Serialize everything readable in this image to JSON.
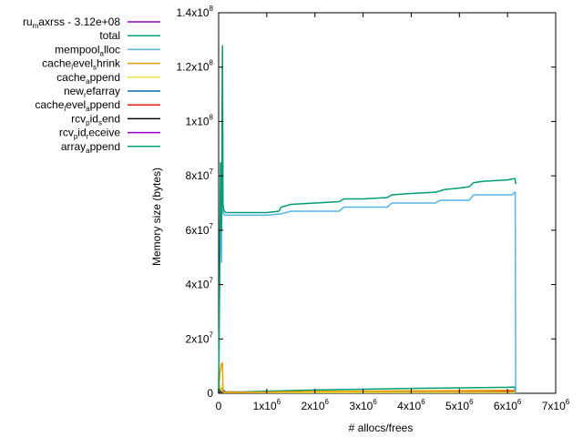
{
  "chart_data": {
    "type": "line",
    "title": "",
    "xlabel": "# allocs/frees",
    "ylabel": "Memory size (bytes)",
    "xlim": [
      0,
      7000000
    ],
    "ylim": [
      0,
      140000000
    ],
    "x_ticks": [
      {
        "value": 0,
        "mant": "0",
        "exp": ""
      },
      {
        "value": 1000000,
        "mant": "1x10",
        "exp": "6"
      },
      {
        "value": 2000000,
        "mant": "2x10",
        "exp": "6"
      },
      {
        "value": 3000000,
        "mant": "3x10",
        "exp": "6"
      },
      {
        "value": 4000000,
        "mant": "4x10",
        "exp": "6"
      },
      {
        "value": 5000000,
        "mant": "5x10",
        "exp": "6"
      },
      {
        "value": 6000000,
        "mant": "6x10",
        "exp": "6"
      },
      {
        "value": 7000000,
        "mant": "7x10",
        "exp": "6"
      }
    ],
    "y_ticks": [
      {
        "value": 0,
        "mant": "0",
        "exp": ""
      },
      {
        "value": 20000000,
        "mant": "2x10",
        "exp": "7"
      },
      {
        "value": 40000000,
        "mant": "4x10",
        "exp": "7"
      },
      {
        "value": 60000000,
        "mant": "6x10",
        "exp": "7"
      },
      {
        "value": 80000000,
        "mant": "8x10",
        "exp": "7"
      },
      {
        "value": 100000000,
        "mant": "1x10",
        "exp": "8"
      },
      {
        "value": 120000000,
        "mant": "1.2x10",
        "exp": "8"
      },
      {
        "value": 140000000,
        "mant": "1.4x10",
        "exp": "8"
      }
    ],
    "legend_position": "left",
    "series": [
      {
        "id": "ru_maxrss",
        "name": "ru_maxrss - 3.12e+08",
        "legend": [
          [
            "ru",
            ""
          ],
          [
            "m",
            "sub"
          ],
          [
            "axrss - 3.12e+08",
            ""
          ]
        ],
        "color": "#9400d3",
        "x": [],
        "y": []
      },
      {
        "id": "total",
        "name": "total",
        "legend": [
          [
            "total",
            ""
          ]
        ],
        "color": "#009e73",
        "x": [
          0,
          20000,
          40000,
          60000,
          80000,
          90000,
          100000,
          120000,
          150000,
          500000,
          1000000,
          1250000,
          1300000,
          1500000,
          2000000,
          2500000,
          2600000,
          3000000,
          3500000,
          3600000,
          4000000,
          4500000,
          4700000,
          5000000,
          5200000,
          5300000,
          5500000,
          6000000,
          6150000,
          6160000,
          6170000
        ],
        "y": [
          0,
          45000000,
          85000000,
          60000000,
          128000000,
          70000000,
          68000000,
          67000000,
          66500000,
          66500000,
          66500000,
          67000000,
          68500000,
          69500000,
          70000000,
          70500000,
          71500000,
          71500000,
          72000000,
          73000000,
          73500000,
          74000000,
          75000000,
          75500000,
          76000000,
          77500000,
          78000000,
          78500000,
          79000000,
          78500000,
          77000000
        ]
      },
      {
        "id": "mempool_alloc",
        "name": "mempool_alloc",
        "legend": [
          [
            "mempool",
            ""
          ],
          [
            "a",
            "sub"
          ],
          [
            "lloc",
            ""
          ]
        ],
        "color": "#56b4e9",
        "x": [
          0,
          20000,
          40000,
          60000,
          80000,
          90000,
          100000,
          120000,
          150000,
          1000000,
          1300000,
          1500000,
          2500000,
          2600000,
          3500000,
          3600000,
          4500000,
          4600000,
          5200000,
          5300000,
          6100000,
          6150000,
          6160000,
          6170000
        ],
        "y": [
          0,
          40000000,
          75000000,
          48000000,
          120000000,
          67000000,
          66000000,
          65500000,
          65500000,
          65500000,
          66000000,
          67000000,
          67000000,
          68500000,
          68500000,
          70000000,
          70000000,
          71000000,
          71000000,
          73000000,
          73000000,
          74000000,
          74000000,
          0
        ]
      },
      {
        "id": "cache_level_shrink",
        "name": "cache_level_shrink",
        "legend": [
          [
            "cache",
            ""
          ],
          [
            "l",
            "sub"
          ],
          [
            "evel",
            ""
          ],
          [
            "s",
            "sub"
          ],
          [
            "hrink",
            ""
          ]
        ],
        "color": "#e69f00",
        "x": [
          0,
          30000,
          60000,
          80000,
          90000,
          100000,
          500000,
          1000000,
          2000000,
          3000000,
          4000000,
          5000000,
          6000000,
          6150000,
          6160000
        ],
        "y": [
          0,
          8000000,
          11000000,
          11000000,
          500000,
          400000,
          300000,
          500000,
          700000,
          800000,
          900000,
          1000000,
          1100000,
          1100000,
          0
        ]
      },
      {
        "id": "cache_append",
        "name": "cache_append",
        "legend": [
          [
            "cache",
            ""
          ],
          [
            "a",
            "sub"
          ],
          [
            "ppend",
            ""
          ]
        ],
        "color": "#f0e442",
        "x": [
          0,
          30000,
          60000,
          100000,
          6150000,
          6160000
        ],
        "y": [
          0,
          3000000,
          1000000,
          300000,
          300000,
          0
        ]
      },
      {
        "id": "new_refarray",
        "name": "new_refarray",
        "legend": [
          [
            "new",
            ""
          ],
          [
            "r",
            "sub"
          ],
          [
            "efarray",
            ""
          ]
        ],
        "color": "#0072b2",
        "x": [
          0,
          40000,
          80000,
          150000,
          6150000,
          6160000
        ],
        "y": [
          0,
          2000000,
          1500000,
          300000,
          300000,
          0
        ]
      },
      {
        "id": "cache_level_append",
        "name": "cache_level_append",
        "legend": [
          [
            "cache",
            ""
          ],
          [
            "l",
            "sub"
          ],
          [
            "evel",
            ""
          ],
          [
            "a",
            "sub"
          ],
          [
            "ppend",
            ""
          ]
        ],
        "color": "#e51e10",
        "x": [
          0,
          50000,
          100000,
          1000000,
          2000000,
          3000000,
          4000000,
          5000000,
          6000000,
          6150000,
          6160000
        ],
        "y": [
          0,
          1500000,
          500000,
          300000,
          300000,
          400000,
          400000,
          500000,
          600000,
          600000,
          0
        ]
      },
      {
        "id": "rcv_pid_send",
        "name": "rcv_pid_send",
        "legend": [
          [
            "rcv",
            ""
          ],
          [
            "p",
            "sub"
          ],
          [
            "id",
            ""
          ],
          [
            "s",
            "sub"
          ],
          [
            "end",
            ""
          ]
        ],
        "color": "#000000",
        "x": [
          0,
          50000,
          100000,
          6150000,
          6160000
        ],
        "y": [
          0,
          800000,
          100000,
          100000,
          0
        ]
      },
      {
        "id": "rcv_pid_receive",
        "name": "rcv_pid_receive",
        "legend": [
          [
            "rcv",
            ""
          ],
          [
            "p",
            "sub"
          ],
          [
            "id",
            ""
          ],
          [
            "r",
            "sub"
          ],
          [
            "eceive",
            ""
          ]
        ],
        "color": "#9400d3",
        "x": [
          0,
          20000,
          50000,
          100000,
          6150000,
          6160000
        ],
        "y": [
          0,
          2000000,
          1000000,
          100000,
          100000,
          0
        ]
      },
      {
        "id": "array_append",
        "name": "array_append",
        "legend": [
          [
            "array",
            ""
          ],
          [
            "a",
            "sub"
          ],
          [
            "ppend",
            ""
          ]
        ],
        "color": "#009e73",
        "x": [
          0,
          50000,
          100000,
          500000,
          1000000,
          2000000,
          3000000,
          4000000,
          5000000,
          6000000,
          6150000,
          6160000
        ],
        "y": [
          0,
          1000000,
          500000,
          500000,
          800000,
          1200000,
          1500000,
          1800000,
          2000000,
          2200000,
          2300000,
          0
        ]
      }
    ]
  }
}
